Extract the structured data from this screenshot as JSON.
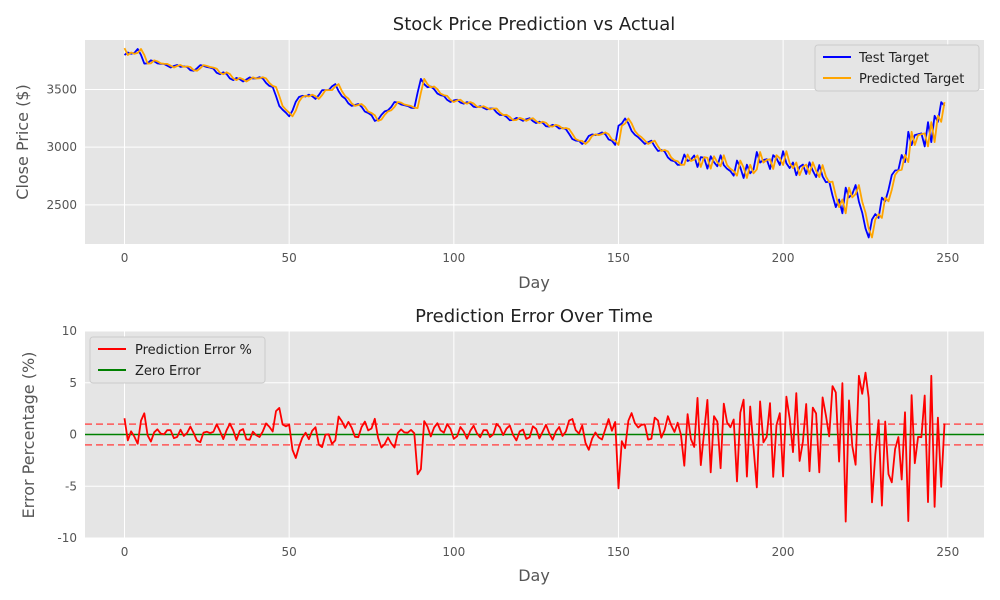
{
  "chart_data": [
    {
      "type": "line",
      "title": "Stock Price Prediction vs Actual",
      "xlabel": "Day",
      "ylabel": "Close Price ($)",
      "xlim": [
        -12,
        261
      ],
      "ylim": [
        2160,
        3930
      ],
      "xticks": [
        0,
        50,
        100,
        150,
        200,
        250
      ],
      "yticks": [
        2500,
        3000,
        3500
      ],
      "grid": true,
      "legend_position": "upper right",
      "series": [
        {
          "name": "Test Target",
          "color": "#0000ff",
          "keypoints": [
            [
              0,
              3800
            ],
            [
              2,
              3805
            ],
            [
              4,
              3840
            ],
            [
              6,
              3740
            ],
            [
              8,
              3750
            ],
            [
              10,
              3740
            ],
            [
              12,
              3700
            ],
            [
              15,
              3700
            ],
            [
              18,
              3720
            ],
            [
              20,
              3660
            ],
            [
              22,
              3680
            ],
            [
              25,
              3710
            ],
            [
              28,
              3660
            ],
            [
              30,
              3640
            ],
            [
              33,
              3580
            ],
            [
              36,
              3590
            ],
            [
              40,
              3610
            ],
            [
              43,
              3560
            ],
            [
              45,
              3510
            ],
            [
              47,
              3380
            ],
            [
              49,
              3290
            ],
            [
              50,
              3270
            ],
            [
              52,
              3380
            ],
            [
              54,
              3450
            ],
            [
              56,
              3450
            ],
            [
              58,
              3440
            ],
            [
              60,
              3480
            ],
            [
              62,
              3500
            ],
            [
              64,
              3530
            ],
            [
              66,
              3460
            ],
            [
              68,
              3380
            ],
            [
              70,
              3370
            ],
            [
              72,
              3340
            ],
            [
              74,
              3290
            ],
            [
              76,
              3240
            ],
            [
              78,
              3280
            ],
            [
              80,
              3330
            ],
            [
              82,
              3370
            ],
            [
              84,
              3380
            ],
            [
              86,
              3350
            ],
            [
              88,
              3360
            ],
            [
              90,
              3580
            ],
            [
              92,
              3520
            ],
            [
              95,
              3480
            ],
            [
              98,
              3420
            ],
            [
              100,
              3400
            ],
            [
              103,
              3380
            ],
            [
              106,
              3370
            ],
            [
              108,
              3350
            ],
            [
              110,
              3340
            ],
            [
              113,
              3300
            ],
            [
              116,
              3260
            ],
            [
              118,
              3250
            ],
            [
              120,
              3240
            ],
            [
              123,
              3230
            ],
            [
              126,
              3220
            ],
            [
              128,
              3200
            ],
            [
              130,
              3180
            ],
            [
              133,
              3160
            ],
            [
              135,
              3120
            ],
            [
              137,
              3060
            ],
            [
              139,
              3040
            ],
            [
              141,
              3080
            ],
            [
              143,
              3110
            ],
            [
              146,
              3120
            ],
            [
              148,
              3060
            ],
            [
              149,
              3010
            ],
            [
              150,
              3190
            ],
            [
              152,
              3230
            ],
            [
              154,
              3150
            ],
            [
              156,
              3080
            ],
            [
              158,
              3050
            ],
            [
              160,
              3040
            ],
            [
              162,
              2970
            ],
            [
              164,
              2950
            ],
            [
              166,
              2900
            ],
            [
              168,
              2850
            ],
            [
              170,
              2880
            ],
            [
              172,
              2900
            ],
            [
              174,
              2870
            ],
            [
              176,
              2900
            ],
            [
              178,
              2870
            ],
            [
              180,
              2880
            ],
            [
              182,
              2860
            ],
            [
              184,
              2760
            ],
            [
              186,
              2850
            ],
            [
              188,
              2800
            ],
            [
              190,
              2780
            ],
            [
              192,
              2900
            ],
            [
              194,
              2880
            ],
            [
              196,
              2870
            ],
            [
              198,
              2910
            ],
            [
              200,
              2900
            ],
            [
              202,
              2840
            ],
            [
              204,
              2790
            ],
            [
              206,
              2840
            ],
            [
              208,
              2820
            ],
            [
              210,
              2790
            ],
            [
              212,
              2760
            ],
            [
              214,
              2660
            ],
            [
              216,
              2500
            ],
            [
              218,
              2520
            ],
            [
              220,
              2600
            ],
            [
              222,
              2620
            ],
            [
              224,
              2450
            ],
            [
              225,
              2260
            ],
            [
              226,
              2270
            ],
            [
              228,
              2420
            ],
            [
              230,
              2480
            ],
            [
              232,
              2640
            ],
            [
              234,
              2800
            ],
            [
              236,
              2880
            ],
            [
              238,
              3050
            ],
            [
              240,
              3100
            ],
            [
              242,
              3080
            ],
            [
              244,
              3100
            ],
            [
              246,
              3200
            ],
            [
              248,
              3370
            ],
            [
              249,
              3380
            ]
          ]
        },
        {
          "name": "Predicted Target",
          "color": "#ffa500",
          "lag_days": 1
        }
      ]
    },
    {
      "type": "line",
      "title": "Prediction Error Over Time",
      "xlabel": "Day",
      "ylabel": "Error Percentage (%)",
      "xlim": [
        -12,
        261
      ],
      "ylim": [
        -10,
        10
      ],
      "xticks": [
        0,
        50,
        100,
        150,
        200,
        250
      ],
      "yticks": [
        -10,
        -5,
        0,
        5,
        10
      ],
      "grid": true,
      "legend_position": "upper left",
      "series": [
        {
          "name": "Prediction Error %",
          "color": "#ff0000"
        },
        {
          "name": "Zero Error",
          "color": "#008000",
          "value": 0
        }
      ],
      "reference_lines": [
        {
          "value": 1,
          "style": "dashed",
          "color": "#ff5555"
        },
        {
          "value": -1,
          "style": "dashed",
          "color": "#ff5555"
        }
      ]
    }
  ]
}
